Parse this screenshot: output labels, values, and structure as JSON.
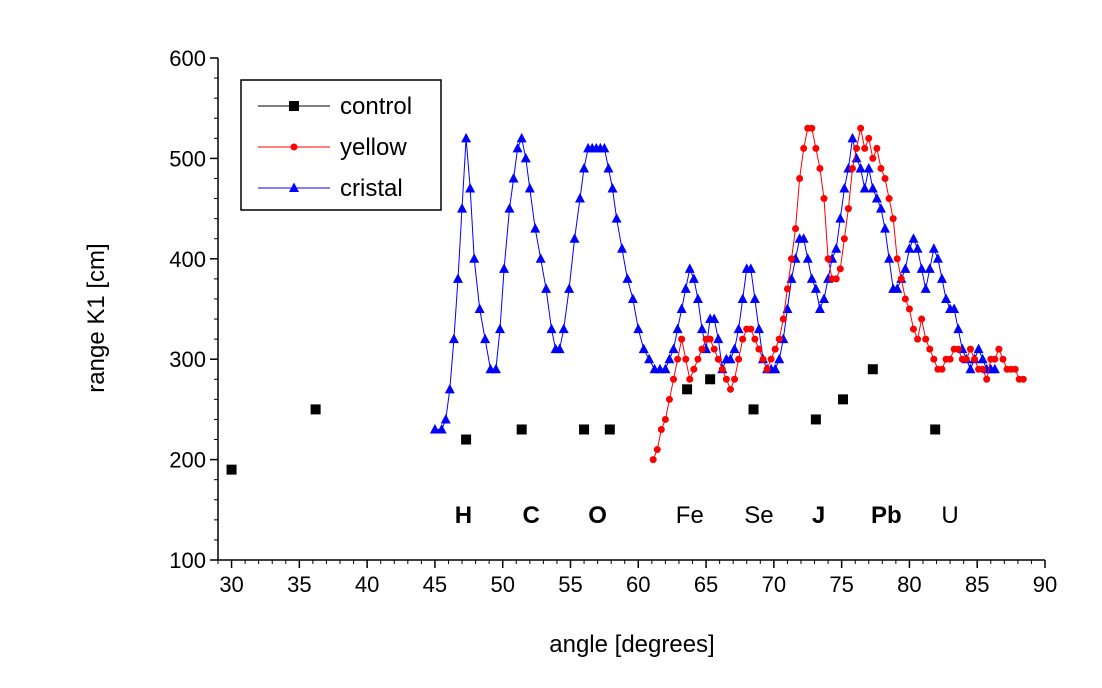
{
  "chart_data": {
    "type": "scatter",
    "title": "",
    "xlabel": "angle [degrees]",
    "ylabel": "range K1 [cm]",
    "xlim": [
      29,
      90
    ],
    "ylim": [
      100,
      600
    ],
    "xticks": [
      30,
      35,
      40,
      45,
      50,
      55,
      60,
      65,
      70,
      75,
      80,
      85,
      90
    ],
    "yticks": [
      100,
      200,
      300,
      400,
      500,
      600
    ],
    "xtick_labels": [
      "30",
      "35",
      "40",
      "45",
      "50",
      "55",
      "60",
      "65",
      "70",
      "75",
      "80",
      "85",
      "90"
    ],
    "ytick_labels": [
      "100",
      "200",
      "300",
      "400",
      "500",
      "600"
    ],
    "grid": false,
    "legend_position": "top-left",
    "series": [
      {
        "name": "control",
        "color": "#000000",
        "marker": "square",
        "line": false,
        "x": [
          30.0,
          36.2,
          47.3,
          51.4,
          56.0,
          57.9,
          63.6,
          65.3,
          68.5,
          73.1,
          75.1,
          77.3,
          81.9
        ],
        "y": [
          190,
          250,
          220,
          230,
          230,
          230,
          270,
          280,
          250,
          240,
          260,
          290,
          230
        ]
      },
      {
        "name": "yellow",
        "color": "#ff0000",
        "marker": "circle",
        "line": true,
        "x": [
          61.1,
          61.4,
          61.7,
          62.0,
          62.3,
          62.6,
          62.9,
          63.2,
          63.5,
          63.8,
          64.1,
          64.4,
          64.7,
          65.0,
          65.3,
          65.6,
          65.9,
          66.2,
          66.5,
          66.8,
          67.1,
          67.4,
          67.7,
          68.0,
          68.3,
          68.6,
          68.9,
          69.2,
          69.5,
          69.8,
          70.1,
          70.4,
          70.7,
          71.0,
          71.3,
          71.6,
          71.9,
          72.2,
          72.5,
          72.8,
          73.1,
          73.4,
          73.7,
          74.0,
          74.3,
          74.6,
          74.9,
          75.2,
          75.5,
          75.8,
          76.1,
          76.4,
          76.7,
          77.0,
          77.3,
          77.6,
          77.9,
          78.2,
          78.5,
          78.8,
          79.1,
          79.4,
          79.7,
          80.0,
          80.3,
          80.6,
          80.9,
          81.2,
          81.5,
          81.8,
          82.1,
          82.4,
          82.7,
          83.0,
          83.3,
          83.6,
          83.9,
          84.2,
          84.5,
          84.8,
          85.1,
          85.4,
          85.7,
          86.0,
          86.3,
          86.6,
          86.9,
          87.2,
          87.5,
          87.8,
          88.1,
          88.4
        ],
        "y": [
          200,
          210,
          230,
          240,
          260,
          280,
          300,
          320,
          300,
          280,
          290,
          300,
          310,
          320,
          320,
          310,
          300,
          290,
          280,
          270,
          280,
          300,
          320,
          330,
          330,
          320,
          310,
          300,
          290,
          300,
          310,
          320,
          340,
          370,
          400,
          430,
          480,
          510,
          530,
          530,
          510,
          490,
          460,
          400,
          380,
          380,
          390,
          420,
          450,
          490,
          510,
          530,
          510,
          520,
          500,
          510,
          490,
          480,
          460,
          440,
          400,
          380,
          360,
          350,
          330,
          320,
          340,
          320,
          310,
          300,
          290,
          290,
          300,
          300,
          310,
          310,
          300,
          300,
          310,
          300,
          290,
          290,
          280,
          300,
          300,
          310,
          300,
          290,
          290,
          290,
          280,
          280
        ]
      },
      {
        "name": "cristal",
        "color": "#0000ff",
        "marker": "triangle",
        "line": true,
        "x": [
          45.0,
          45.5,
          45.8,
          46.1,
          46.4,
          46.7,
          47.0,
          47.3,
          47.6,
          47.9,
          48.3,
          48.7,
          49.1,
          49.5,
          49.8,
          50.1,
          50.5,
          50.8,
          51.1,
          51.4,
          51.7,
          52.0,
          52.4,
          52.8,
          53.2,
          53.6,
          53.9,
          54.2,
          54.5,
          54.9,
          55.3,
          55.7,
          56.0,
          56.3,
          56.6,
          56.9,
          57.2,
          57.5,
          57.8,
          58.1,
          58.4,
          58.8,
          59.2,
          59.6,
          60.0,
          60.4,
          60.8,
          61.2,
          61.6,
          62.0,
          62.3,
          62.6,
          62.9,
          63.2,
          63.5,
          63.8,
          64.1,
          64.4,
          64.7,
          65.0,
          65.3,
          65.6,
          65.9,
          66.2,
          66.5,
          66.8,
          67.1,
          67.4,
          67.7,
          68.0,
          68.3,
          68.6,
          68.9,
          69.2,
          69.5,
          69.8,
          70.1,
          70.4,
          70.7,
          71.0,
          71.3,
          71.6,
          71.9,
          72.2,
          72.5,
          72.8,
          73.1,
          73.4,
          73.7,
          74.0,
          74.3,
          74.6,
          74.9,
          75.2,
          75.5,
          75.8,
          76.1,
          76.4,
          76.7,
          77.0,
          77.3,
          77.6,
          77.9,
          78.2,
          78.5,
          78.8,
          79.1,
          79.4,
          79.7,
          80.0,
          80.3,
          80.6,
          80.9,
          81.2,
          81.5,
          81.8,
          82.1,
          82.4,
          82.7,
          83.0,
          83.3,
          83.6,
          83.9,
          84.2,
          84.5,
          84.8,
          85.1,
          85.4,
          85.7,
          86.0,
          86.3
        ],
        "y": [
          230,
          230,
          240,
          270,
          320,
          380,
          450,
          520,
          470,
          400,
          350,
          320,
          290,
          290,
          330,
          390,
          450,
          480,
          510,
          520,
          500,
          470,
          430,
          400,
          370,
          330,
          310,
          310,
          330,
          370,
          420,
          460,
          490,
          510,
          510,
          510,
          510,
          510,
          490,
          470,
          440,
          410,
          380,
          360,
          330,
          310,
          300,
          290,
          290,
          290,
          300,
          310,
          330,
          350,
          370,
          390,
          380,
          360,
          330,
          310,
          340,
          340,
          320,
          290,
          300,
          300,
          310,
          330,
          360,
          390,
          390,
          360,
          330,
          300,
          290,
          290,
          290,
          300,
          320,
          350,
          380,
          400,
          420,
          420,
          400,
          380,
          370,
          350,
          360,
          380,
          400,
          410,
          440,
          470,
          490,
          520,
          500,
          490,
          470,
          490,
          470,
          460,
          450,
          430,
          400,
          370,
          370,
          380,
          390,
          410,
          420,
          410,
          390,
          370,
          390,
          410,
          400,
          380,
          360,
          350,
          350,
          330,
          310,
          300,
          290,
          300,
          310,
          300,
          290,
          290,
          290
        ]
      }
    ],
    "annotations": [
      {
        "text": "H",
        "x": 47.1,
        "y": 145,
        "bold": true
      },
      {
        "text": "C",
        "x": 52.1,
        "y": 145,
        "bold": true
      },
      {
        "text": "O",
        "x": 57.0,
        "y": 145,
        "bold": true
      },
      {
        "text": "Fe",
        "x": 63.8,
        "y": 145,
        "bold": false
      },
      {
        "text": "Se",
        "x": 68.9,
        "y": 145,
        "bold": false
      },
      {
        "text": "J",
        "x": 73.3,
        "y": 145,
        "bold": true
      },
      {
        "text": "Pb",
        "x": 78.3,
        "y": 145,
        "bold": true
      },
      {
        "text": "U",
        "x": 83.0,
        "y": 145,
        "bold": false
      }
    ]
  }
}
